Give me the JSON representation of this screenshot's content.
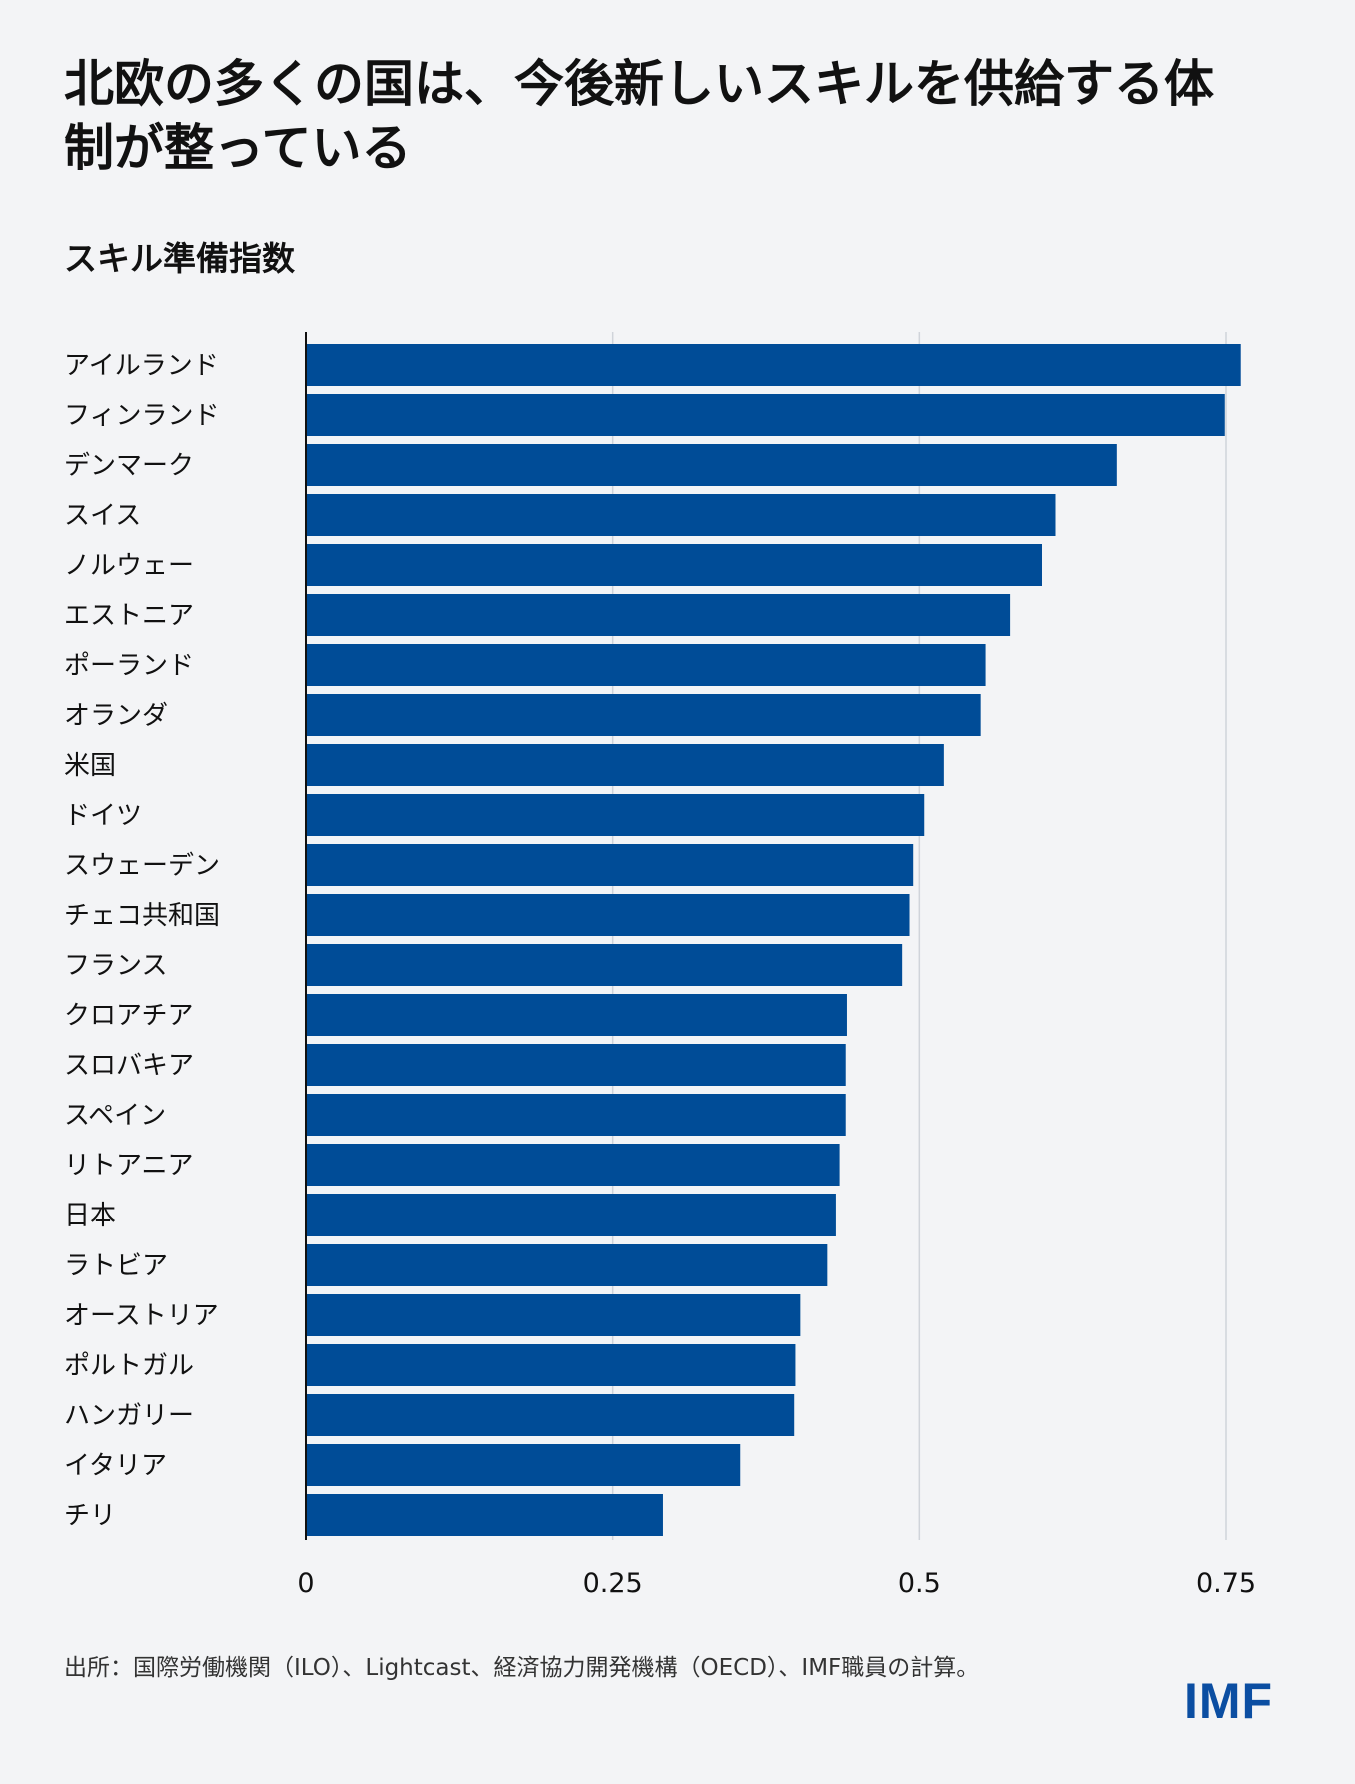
{
  "header": {
    "title": "北欧の多くの国は、今後新しいスキルを供給する体制が整っている",
    "subtitle": "スキル準備指数"
  },
  "footer": {
    "source": "出所：国際労働機関（ILO）、Lightcast、経済協力開発機構（OECD）、IMF職員の計算。",
    "logo": "IMF"
  },
  "colors": {
    "bar": "#004c97",
    "grid": "#d0d4da",
    "axis": "#111111",
    "background": "#f3f4f6",
    "logo": "#0b4ea2"
  },
  "chart_data": {
    "type": "bar",
    "orientation": "horizontal",
    "categories": [
      "アイルランド",
      "フィンランド",
      "デンマーク",
      "スイス",
      "ノルウェー",
      "エストニア",
      "ポーランド",
      "オランダ",
      "米国",
      "ドイツ",
      "スウェーデン",
      "チェコ共和国",
      "フランス",
      "クロアチア",
      "スロバキア",
      "スペイン",
      "リトアニア",
      "日本",
      "ラトビア",
      "オーストリア",
      "ポルトガル",
      "ハンガリー",
      "イタリア",
      "チリ"
    ],
    "values": [
      0.762,
      0.749,
      0.661,
      0.611,
      0.6,
      0.574,
      0.554,
      0.55,
      0.52,
      0.504,
      0.495,
      0.492,
      0.486,
      0.441,
      0.44,
      0.44,
      0.435,
      0.432,
      0.425,
      0.403,
      0.399,
      0.398,
      0.354,
      0.291
    ],
    "xlim": [
      0,
      0.75
    ],
    "xticks": [
      "0",
      "0.25",
      "0.5",
      "0.75"
    ],
    "xtick_values": [
      0,
      0.25,
      0.5,
      0.75
    ],
    "grid": "vertical"
  }
}
